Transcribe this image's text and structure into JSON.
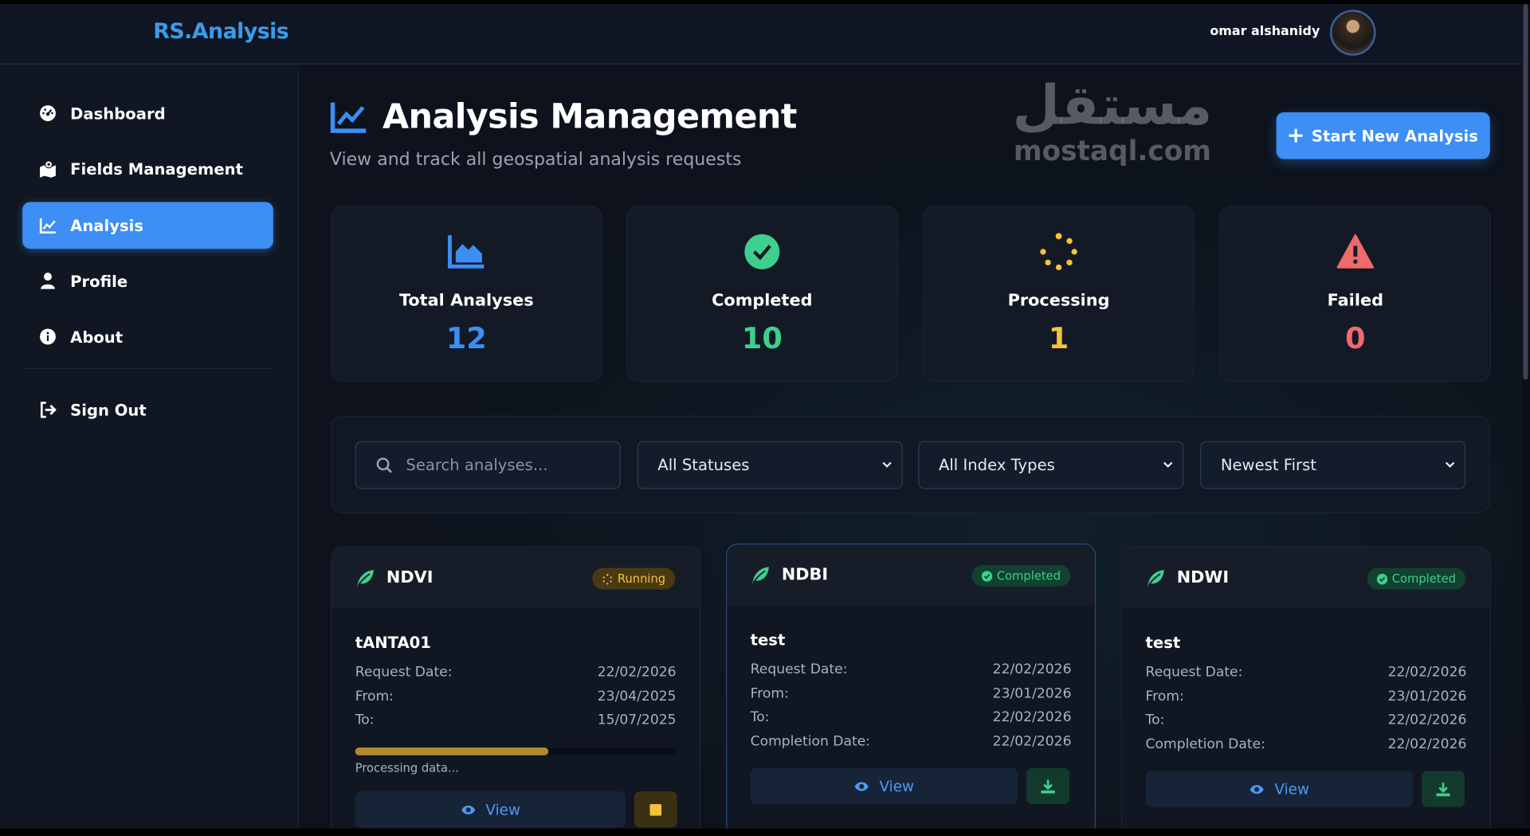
{
  "header": {
    "logo": "RS.Analysis",
    "user_name": "omar alshanidy"
  },
  "sidebar": {
    "items": [
      {
        "label": "Dashboard",
        "icon": "gauge-icon"
      },
      {
        "label": "Fields Management",
        "icon": "map-location-icon"
      },
      {
        "label": "Analysis",
        "icon": "line-chart-icon",
        "active": true
      },
      {
        "label": "Profile",
        "icon": "user-icon"
      },
      {
        "label": "About",
        "icon": "info-icon"
      }
    ],
    "signout": "Sign Out"
  },
  "page": {
    "title": "Analysis Management",
    "subtitle": "View and track all geospatial analysis requests",
    "new_button": "Start New Analysis"
  },
  "stats": [
    {
      "label": "Total Analyses",
      "value": "12",
      "color": "#3d8ef5",
      "icon": "chart-area-icon"
    },
    {
      "label": "Completed",
      "value": "10",
      "color": "#3ecf8e",
      "icon": "check-circle-icon"
    },
    {
      "label": "Processing",
      "value": "1",
      "color": "#f5c23a",
      "icon": "spinner-icon"
    },
    {
      "label": "Failed",
      "value": "0",
      "color": "#ef6a6a",
      "icon": "warning-icon"
    }
  ],
  "filters": {
    "search_placeholder": "Search analyses...",
    "status": "All Statuses",
    "index_type": "All Index Types",
    "sort": "Newest First"
  },
  "labels": {
    "request_date": "Request Date:",
    "from": "From:",
    "to": "To:",
    "completion_date": "Completion Date:",
    "view": "View",
    "processing": "Processing data..."
  },
  "cards": [
    {
      "index": "NDVI",
      "status": "Running",
      "name": "tANTA01",
      "request_date": "22/02/2026",
      "from": "23/04/2025",
      "to": "15/07/2025",
      "progress": 0.6
    },
    {
      "index": "NDBI",
      "status": "Completed",
      "name": "test",
      "request_date": "22/02/2026",
      "from": "23/01/2026",
      "to": "22/02/2026",
      "completion_date": "22/02/2026"
    },
    {
      "index": "NDWI",
      "status": "Completed",
      "name": "test",
      "request_date": "22/02/2026",
      "from": "23/01/2026",
      "to": "22/02/2026",
      "completion_date": "22/02/2026"
    }
  ],
  "watermark": {
    "arabic": "مستقل",
    "latin": "mostaql.com"
  }
}
